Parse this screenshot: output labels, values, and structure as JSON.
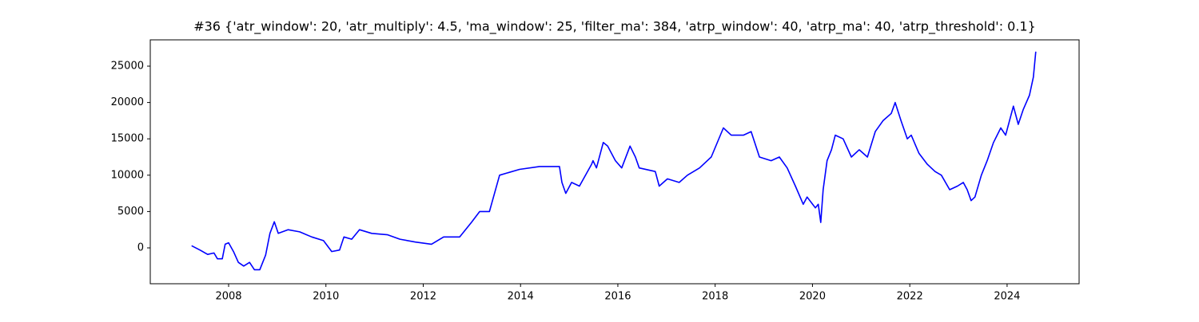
{
  "chart_data": {
    "type": "line",
    "title": "#36 {'atr_window': 20, 'atr_multiply': 4.5, 'ma_window': 25, 'filter_ma': 384, 'atrp_window': 40, 'atrp_ma': 40, 'atrp_threshold': 0.1}",
    "x": [
      2007.24,
      2007.41,
      2007.57,
      2007.7,
      2007.77,
      2007.87,
      2007.93,
      2008.0,
      2008.1,
      2008.2,
      2008.31,
      2008.43,
      2008.53,
      2008.64,
      2008.76,
      2008.85,
      2008.94,
      2009.02,
      2009.22,
      2009.46,
      2009.71,
      2009.95,
      2010.12,
      2010.28,
      2010.37,
      2010.53,
      2010.69,
      2010.94,
      2011.27,
      2011.52,
      2011.84,
      2012.17,
      2012.42,
      2012.75,
      2012.99,
      2013.16,
      2013.36,
      2013.57,
      2013.98,
      2014.39,
      2014.8,
      2014.85,
      2014.93,
      2015.05,
      2015.21,
      2015.46,
      2015.49,
      2015.56,
      2015.7,
      2015.79,
      2015.95,
      2016.08,
      2016.25,
      2016.36,
      2016.44,
      2016.77,
      2016.85,
      2017.02,
      2017.26,
      2017.43,
      2017.68,
      2017.92,
      2018.17,
      2018.33,
      2018.58,
      2018.74,
      2018.91,
      2019.15,
      2019.32,
      2019.48,
      2019.65,
      2019.81,
      2019.89,
      2020.06,
      2020.12,
      2020.17,
      2020.22,
      2020.3,
      2020.39,
      2020.47,
      2020.63,
      2020.8,
      2020.96,
      2021.13,
      2021.29,
      2021.45,
      2021.62,
      2021.7,
      2021.82,
      2021.95,
      2022.03,
      2022.19,
      2022.36,
      2022.52,
      2022.65,
      2022.82,
      2022.98,
      2023.1,
      2023.18,
      2023.26,
      2023.34,
      2023.47,
      2023.59,
      2023.72,
      2023.87,
      2023.97,
      2024.13,
      2024.23,
      2024.33,
      2024.46,
      2024.54,
      2024.59
    ],
    "series": [
      {
        "color": "#0000ff",
        "values": [
          300,
          -300,
          -900,
          -700,
          -1500,
          -1500,
          500,
          700,
          -500,
          -2000,
          -2500,
          -2000,
          -3000,
          -3000,
          -1000,
          2000,
          3600,
          2000,
          2500,
          2200,
          1500,
          1000,
          -500,
          -300,
          1500,
          1200,
          2500,
          2000,
          1800,
          1200,
          800,
          500,
          1500,
          1500,
          3500,
          5000,
          5000,
          10000,
          10800,
          11200,
          11200,
          9000,
          7500,
          9000,
          8500,
          11500,
          12000,
          11000,
          14500,
          14000,
          12000,
          11000,
          14000,
          12500,
          11000,
          10500,
          8500,
          9500,
          9000,
          10000,
          11000,
          12500,
          16500,
          15500,
          15500,
          16000,
          12500,
          12000,
          12500,
          11000,
          8500,
          6000,
          7000,
          5500,
          6000,
          3500,
          8000,
          12000,
          13500,
          15500,
          15000,
          12500,
          13500,
          12500,
          16000,
          17500,
          18500,
          20000,
          17500,
          15000,
          15500,
          13000,
          11500,
          10500,
          10000,
          8000,
          8500,
          9000,
          8000,
          6500,
          7000,
          10000,
          12000,
          14500,
          16500,
          15500,
          19500,
          17000,
          19000,
          21000,
          23500,
          27000
        ]
      }
    ],
    "xlim": [
      2006.39,
      2025.48
    ],
    "xticks": [
      2008,
      2010,
      2012,
      2014,
      2016,
      2018,
      2020,
      2022,
      2024
    ],
    "ylim": [
      -4934,
      28618
    ],
    "yticks": [
      0,
      5000,
      10000,
      15000,
      20000,
      25000
    ]
  }
}
